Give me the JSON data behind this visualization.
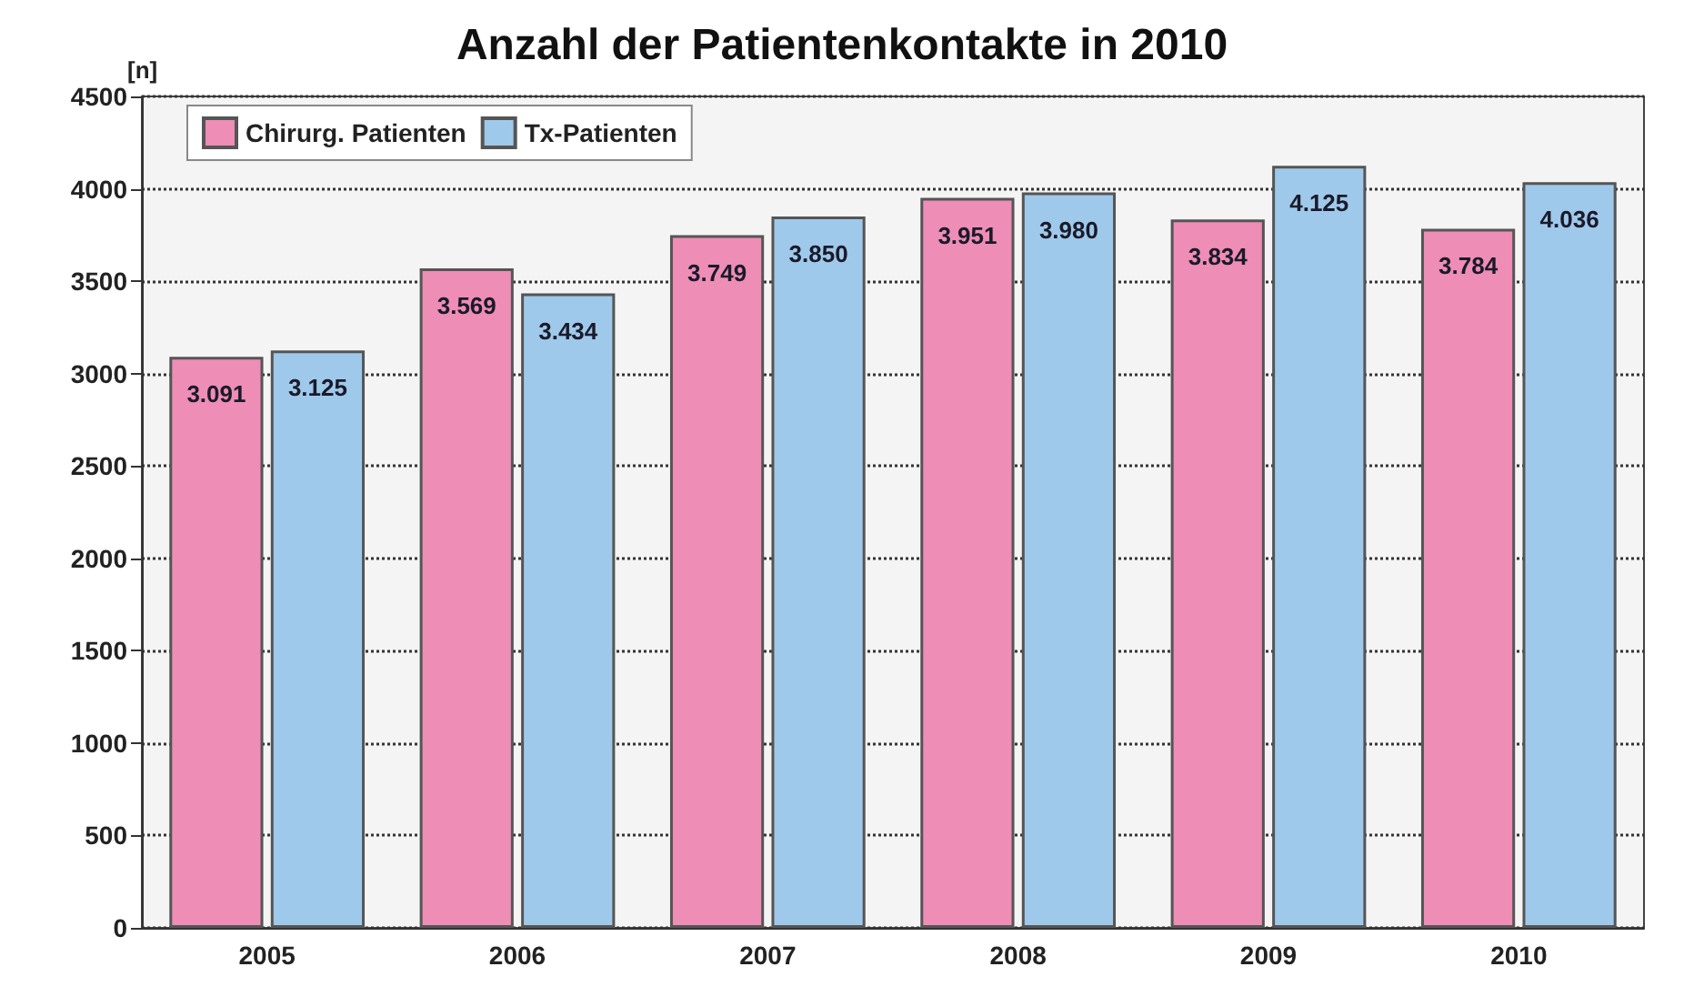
{
  "chart_data": {
    "type": "bar",
    "title": "Anzahl der Patientenkontakte in 2010",
    "ylabel": "[n]",
    "categories": [
      "2005",
      "2006",
      "2007",
      "2008",
      "2009",
      "2010"
    ],
    "series": [
      {
        "name": "Chirurg. Patienten",
        "color": "#ee8db5",
        "values": [
          3091,
          3569,
          3749,
          3951,
          3834,
          3784
        ],
        "value_labels": [
          "3.091",
          "3.569",
          "3.749",
          "3.951",
          "3.834",
          "3.784"
        ]
      },
      {
        "name": "Tx-Patienten",
        "color": "#9fc9ea",
        "values": [
          3125,
          3434,
          3850,
          3980,
          4125,
          4036
        ],
        "value_labels": [
          "3.125",
          "3.434",
          "3.850",
          "3.980",
          "4.125",
          "4.036"
        ]
      }
    ],
    "ylim": [
      0,
      4500
    ],
    "yticks": [
      0,
      500,
      1000,
      1500,
      2000,
      2500,
      3000,
      3500,
      4000,
      4500
    ],
    "grid": "y",
    "legend": "top left"
  }
}
